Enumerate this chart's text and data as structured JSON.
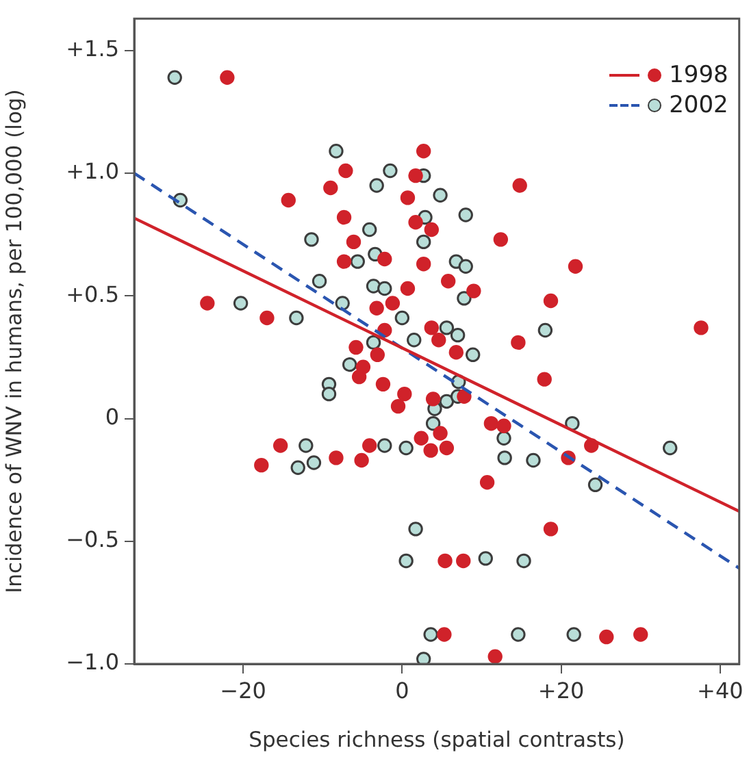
{
  "chart_data": {
    "type": "scatter",
    "xlabel": "Species richness (spatial contrasts)",
    "ylabel": "Incidence of WNV in humans, per 100,000 (log)",
    "xlim": [
      -33.7,
      42.4
    ],
    "ylim": [
      -1.0,
      1.63
    ],
    "xticks": [
      {
        "value": -20,
        "label": "−20"
      },
      0,
      {
        "value": 20,
        "label": "+20"
      },
      {
        "value": 40,
        "label": "+40"
      }
    ],
    "yticks": [
      {
        "value": -1.0,
        "label": "−1.0"
      },
      {
        "value": -0.5,
        "label": "−0.5"
      },
      0,
      {
        "value": 0.5,
        "label": "+0.5"
      },
      {
        "value": 1.0,
        "label": "+1.0"
      },
      {
        "value": 1.5,
        "label": "+1.5"
      }
    ],
    "grid": false,
    "legend": "top right",
    "marker": "circle",
    "series": [
      {
        "name": "1998",
        "color": "#d0222a",
        "x": [
          -22.0,
          -7.1,
          -9.0,
          -14.3,
          -7.3,
          -6.1,
          -7.3,
          -2.2,
          -24.5,
          -17.0,
          -3.2,
          -1.2,
          -2.2,
          -5.8,
          0.7,
          0.7,
          2.7,
          1.7,
          14.8,
          1.7,
          3.7,
          12.4,
          2.7,
          21.8,
          5.8,
          9.0,
          18.7,
          3.7,
          4.6,
          14.6,
          37.6,
          -3.1,
          -4.9,
          -5.4,
          -2.4,
          0.3,
          -0.5,
          -17.7,
          -15.3,
          -8.3,
          -5.1,
          -4.1,
          6.8,
          17.9,
          7.8,
          3.9,
          11.2,
          12.8,
          4.8,
          2.4,
          3.6,
          5.6,
          23.8,
          20.9,
          10.7,
          18.7,
          5.4,
          7.7,
          5.3,
          25.7,
          30.0,
          11.7
        ],
        "values": [
          1.39,
          1.01,
          0.94,
          0.89,
          0.82,
          0.72,
          0.64,
          0.65,
          0.47,
          0.41,
          0.45,
          0.47,
          0.36,
          0.29,
          0.53,
          0.9,
          1.09,
          0.99,
          0.95,
          0.8,
          0.77,
          0.73,
          0.63,
          0.62,
          0.56,
          0.52,
          0.48,
          0.37,
          0.32,
          0.31,
          0.37,
          0.26,
          0.21,
          0.17,
          0.14,
          0.1,
          0.05,
          -0.19,
          -0.11,
          -0.16,
          -0.17,
          -0.11,
          0.27,
          0.16,
          0.09,
          0.08,
          -0.02,
          -0.03,
          -0.06,
          -0.08,
          -0.13,
          -0.12,
          -0.11,
          -0.16,
          -0.26,
          -0.45,
          -0.58,
          -0.58,
          -0.88,
          -0.89,
          -0.88,
          -0.97
        ]
      },
      {
        "name": "2002",
        "color": "#b9ded8",
        "x": [
          -28.6,
          -27.9,
          -8.3,
          -1.5,
          -3.2,
          -4.1,
          -11.4,
          -3.4,
          -5.6,
          -10.4,
          -3.6,
          -2.2,
          -20.3,
          -13.3,
          -7.5,
          0.0,
          -3.6,
          2.7,
          4.8,
          8.0,
          2.9,
          2.7,
          6.8,
          8.0,
          7.8,
          5.6,
          7.0,
          1.5,
          18.0,
          8.9,
          -6.6,
          -9.2,
          -9.2,
          -12.1,
          -13.1,
          -11.1,
          -2.2,
          0.5,
          0.5,
          7.1,
          5.6,
          7.0,
          4.1,
          3.9,
          12.8,
          12.9,
          16.5,
          21.4,
          24.3,
          33.7,
          1.7,
          10.5,
          15.3,
          3.6,
          14.6,
          21.6,
          2.7
        ],
        "values": [
          1.39,
          0.89,
          1.09,
          1.01,
          0.95,
          0.77,
          0.73,
          0.67,
          0.64,
          0.56,
          0.54,
          0.53,
          0.47,
          0.41,
          0.47,
          0.41,
          0.31,
          0.99,
          0.91,
          0.83,
          0.82,
          0.72,
          0.64,
          0.62,
          0.49,
          0.37,
          0.34,
          0.32,
          0.36,
          0.26,
          0.22,
          0.14,
          0.1,
          -0.11,
          -0.2,
          -0.18,
          -0.11,
          -0.12,
          -0.58,
          0.15,
          0.07,
          0.09,
          0.04,
          -0.02,
          -0.08,
          -0.16,
          -0.17,
          -0.02,
          -0.27,
          -0.12,
          -0.45,
          -0.57,
          -0.58,
          -0.88,
          -0.88,
          -0.88,
          -0.98
        ]
      },
      {
        "type": "line",
        "marker": "none",
        "color": "#d0222a",
        "line_style": "solid",
        "x": [
          -33.7,
          42.4
        ],
        "values": [
          0.817,
          -0.378
        ]
      },
      {
        "type": "line",
        "marker": "none",
        "color": "#2a55b0",
        "line_style": "dashed",
        "x": [
          -33.7,
          42.4
        ],
        "values": [
          1.0,
          -0.61
        ]
      }
    ]
  }
}
